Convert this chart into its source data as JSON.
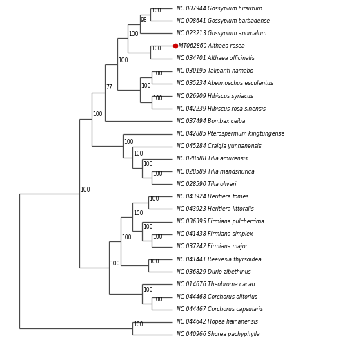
{
  "taxa": [
    "NC 007944 Gossypium hirsutum",
    "NC 008641 Gossypium barbadense",
    "NC 023213 Gossypium anomalum",
    "MT062860 Althaea rosea",
    "NC 034701 Althaea officinalis",
    "NC 030195 Talipariti hamabo",
    "NC 035234 Abelmoschus esculentus",
    "NC 026909 Hibiscus syriacus",
    "NC 042239 Hibiscus rosa sinensis",
    "NC 037494 Bombax ceiba",
    "NC 042885 Pterospermum kingtungense",
    "NC 045284 Craigia yunnanensis",
    "NC 028588 Tilia amurensis",
    "NC 028589 Tilia mandshurica",
    "NC 028590 Tilia oliveri",
    "NC 043924 Heritiera fomes",
    "NC 043923 Heritiera littoralis",
    "NC 036395 Firmiana pulcherrima",
    "NC 041438 Firmiana simplex",
    "NC 037242 Firmiana major",
    "NC 041441 Reevesia thyrsoidea",
    "NC 036829 Durio zibethinus",
    "NC 014676 Theobroma cacao",
    "NC 044468 Corchorus olitorius",
    "NC 044467 Corchorus capsularis",
    "NC 044642 Hopea hainanensis",
    "NC 040966 Shorea pachyphylla"
  ],
  "highlighted_taxon": "MT062860 Althaea rosea",
  "highlight_color": "#cc0000",
  "line_color": "#4a4a4a",
  "text_color": "#000000",
  "background_color": "#ffffff",
  "bootstrap_color": "#000000"
}
